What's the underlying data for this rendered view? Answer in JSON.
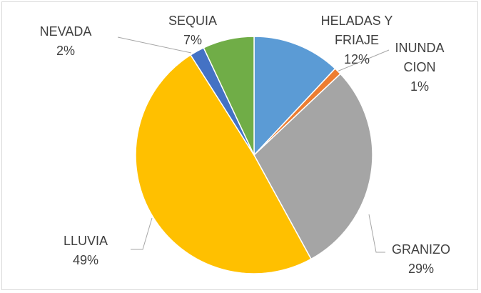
{
  "chart_data": {
    "type": "pie",
    "categories": [
      "HELADAS Y FRIAJE",
      "INUNDACION",
      "GRANIZO",
      "LLUVIA",
      "NEVADA",
      "SEQUIA"
    ],
    "values": [
      12,
      1,
      29,
      49,
      2,
      7
    ],
    "value_labels": [
      "12%",
      "1%",
      "29%",
      "49%",
      "2%",
      "7%"
    ],
    "colors": [
      "#5b9bd5",
      "#ed7d31",
      "#a5a5a5",
      "#ffc000",
      "#4472c4",
      "#70ad47"
    ]
  }
}
